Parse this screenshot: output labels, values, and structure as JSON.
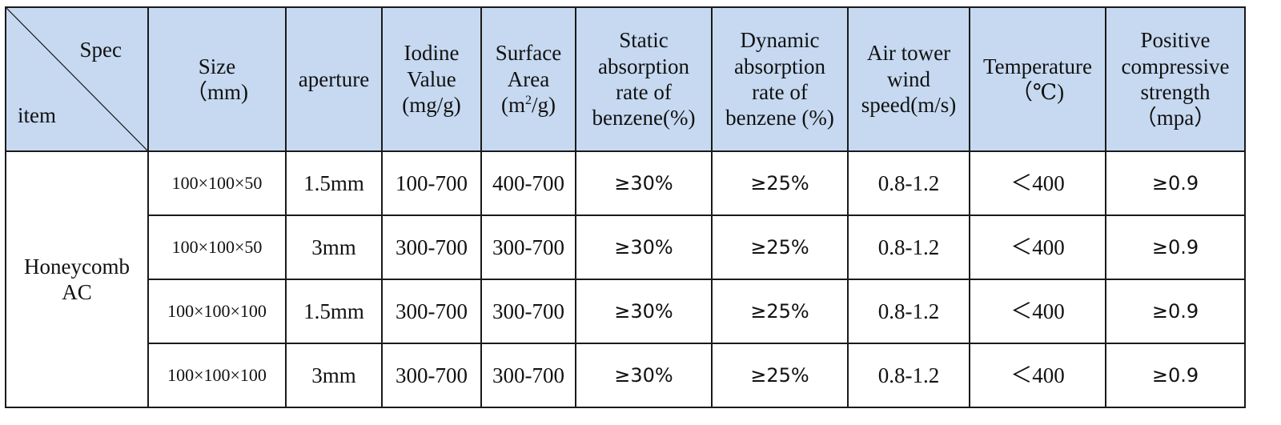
{
  "table": {
    "header": {
      "corner_spec": "Spec",
      "corner_item": "item",
      "size": [
        "Size",
        "（mm)"
      ],
      "aperture": "aperture",
      "iodine": [
        "Iodine",
        "Value",
        "(mg/g)"
      ],
      "surface": {
        "line1": "Surface",
        "line2": "Area",
        "unit_open": "(m",
        "unit_sup": "2",
        "unit_close": "/g)"
      },
      "static": [
        "Static",
        "absorption",
        "rate of",
        "benzene(%)"
      ],
      "dynamic": [
        "Dynamic",
        "absorption",
        "rate of",
        "benzene (%)"
      ],
      "wind": [
        "Air tower",
        "wind",
        "speed(m/s)"
      ],
      "temperature": [
        "Temperature",
        "（℃)"
      ],
      "compressive": [
        "Positive",
        "compressive",
        "strength",
        "（mpa）"
      ]
    },
    "item_label": [
      "Honeycomb",
      "AC"
    ],
    "rows": [
      {
        "size": "100×100×50",
        "aperture": "1.5mm",
        "iodine": "100-700",
        "surface": "400-700",
        "static": "≥30%",
        "dynamic": "≥25%",
        "wind": "0.8-1.2",
        "temperature": "＜400",
        "compressive": "≥0.9"
      },
      {
        "size": "100×100×50",
        "aperture": "3mm",
        "iodine": "300-700",
        "surface": "300-700",
        "static": "≥30%",
        "dynamic": "≥25%",
        "wind": "0.8-1.2",
        "temperature": "＜400",
        "compressive": "≥0.9"
      },
      {
        "size": "100×100×100",
        "aperture": "1.5mm",
        "iodine": "300-700",
        "surface": "300-700",
        "static": "≥30%",
        "dynamic": "≥25%",
        "wind": "0.8-1.2",
        "temperature": "＜400",
        "compressive": "≥0.9"
      },
      {
        "size": "100×100×100",
        "aperture": "3mm",
        "iodine": "300-700",
        "surface": "300-700",
        "static": "≥30%",
        "dynamic": "≥25%",
        "wind": "0.8-1.2",
        "temperature": "＜400",
        "compressive": "≥0.9"
      }
    ]
  }
}
